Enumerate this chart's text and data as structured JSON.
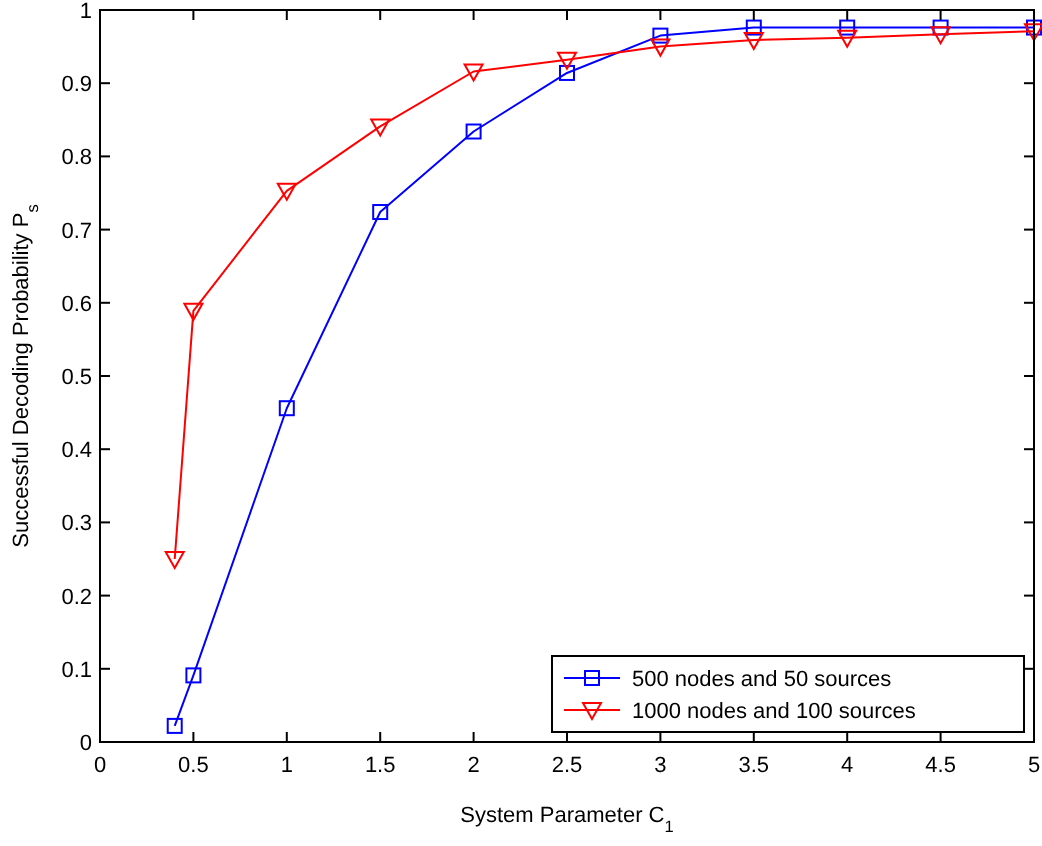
{
  "chart_data": {
    "type": "line",
    "xlabel": "System Parameter C$_{1}$",
    "ylabel": "Successful Decoding Probability P$_{s}$",
    "xlim": [
      0,
      5
    ],
    "xticks": [
      0,
      0.5,
      1,
      1.5,
      2,
      2.5,
      3,
      3.5,
      4,
      4.5,
      5
    ],
    "ylim": [
      0,
      1
    ],
    "yticks": [
      0,
      0.1,
      0.2,
      0.3,
      0.4,
      0.5,
      0.6,
      0.7,
      0.8,
      0.9,
      1
    ],
    "grid": false,
    "legend": "bottom right",
    "line_style": "solid",
    "series": [
      {
        "name": "500 nodes and 50 sources",
        "color": "#0000ff",
        "marker": "square",
        "x": [
          0.4,
          0.5,
          1,
          1.5,
          2,
          2.5,
          3,
          3.5,
          4,
          4.5,
          5
        ],
        "values": [
          0.022,
          0.091,
          0.456,
          0.724,
          0.834,
          0.914,
          0.965,
          0.976,
          0.976,
          0.976,
          0.976
        ]
      },
      {
        "name": "1000 nodes and 100 sources",
        "color": "#ff0000",
        "marker": "triangle",
        "x": [
          0.4,
          0.5,
          1,
          1.5,
          2,
          2.5,
          3,
          3.5,
          4,
          4.5,
          5
        ],
        "values": [
          0.25,
          0.589,
          0.753,
          0.841,
          0.916,
          0.932,
          0.95,
          0.959,
          0.962,
          0.967,
          0.971
        ]
      }
    ]
  }
}
